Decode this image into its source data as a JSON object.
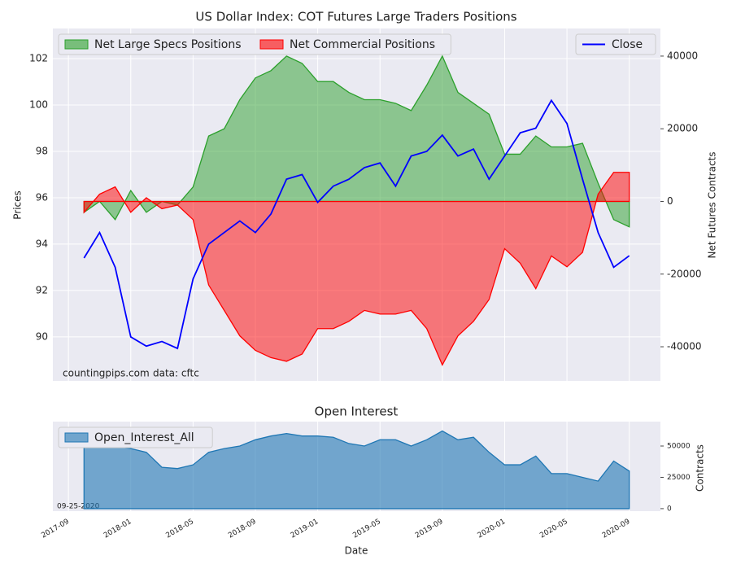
{
  "chart_data": [
    {
      "type": "combo",
      "title": "US Dollar Index: COT Futures Large Traders Positions",
      "ylabel": "Prices",
      "y2label": "Net Futures Contracts",
      "annotations": [
        "countingpips.com",
        "data: cftc"
      ],
      "x": [
        "2017-10",
        "2017-11",
        "2017-12",
        "2018-01",
        "2018-02",
        "2018-03",
        "2018-04",
        "2018-05",
        "2018-06",
        "2018-07",
        "2018-08",
        "2018-09",
        "2018-10",
        "2018-11",
        "2018-12",
        "2019-01",
        "2019-02",
        "2019-03",
        "2019-04",
        "2019-05",
        "2019-06",
        "2019-07",
        "2019-08",
        "2019-09",
        "2019-10",
        "2019-11",
        "2019-12",
        "2020-01",
        "2020-02",
        "2020-03",
        "2020-04",
        "2020-05",
        "2020-06",
        "2020-07",
        "2020-08",
        "2020-09"
      ],
      "xlim": [
        "2017-08",
        "2020-11"
      ],
      "ylim": [
        88.1,
        103.3
      ],
      "yticks": [
        90,
        92,
        94,
        96,
        98,
        100,
        102
      ],
      "y2lim": [
        -49400,
        47600
      ],
      "y2ticks": [
        -40000,
        -20000,
        0,
        20000,
        40000
      ],
      "grid": true,
      "legend": [
        "upper left",
        "upper right"
      ],
      "series": [
        {
          "name": "Net Large Specs Positions",
          "color": "#2ca02c",
          "axis": "y2",
          "kind": "area",
          "values": [
            -3000,
            0,
            -5000,
            3000,
            -3000,
            0,
            -1000,
            4000,
            18000,
            20000,
            28000,
            34000,
            36000,
            40000,
            38000,
            33000,
            33000,
            30000,
            28000,
            28000,
            27000,
            25000,
            32000,
            40000,
            30000,
            27000,
            24000,
            13000,
            13000,
            18000,
            15000,
            15000,
            16000,
            5000,
            -5000,
            -7000
          ]
        },
        {
          "name": "Net Commercial Positions",
          "color": "#ff0000",
          "axis": "y2",
          "kind": "area",
          "values": [
            -3000,
            2000,
            4000,
            -3000,
            1000,
            -2000,
            -1000,
            -5000,
            -23000,
            -30000,
            -37000,
            -41000,
            -43000,
            -44000,
            -42000,
            -35000,
            -35000,
            -33000,
            -30000,
            -31000,
            -31000,
            -30000,
            -35000,
            -45000,
            -37000,
            -33000,
            -27000,
            -13000,
            -17000,
            -24000,
            -15000,
            -18000,
            -14000,
            2000,
            8000,
            8000
          ]
        },
        {
          "name": "Close",
          "color": "#0000ff",
          "axis": "y",
          "kind": "line",
          "values": [
            93.4,
            94.5,
            93.0,
            90.0,
            89.6,
            89.8,
            89.5,
            92.5,
            94.0,
            94.5,
            95.0,
            94.5,
            95.3,
            96.8,
            97.0,
            95.8,
            96.5,
            96.8,
            97.3,
            97.5,
            96.5,
            97.8,
            98.0,
            98.7,
            97.8,
            98.1,
            96.8,
            97.8,
            98.8,
            99.0,
            100.2,
            99.2,
            96.8,
            94.5,
            93.0,
            93.5
          ]
        }
      ]
    },
    {
      "type": "area",
      "title": "Open Interest",
      "xlabel": "Date",
      "ylabel": "Contracts",
      "annotations": [
        "09-25-2020"
      ],
      "x": [
        "2017-10",
        "2017-11",
        "2017-12",
        "2018-01",
        "2018-02",
        "2018-03",
        "2018-04",
        "2018-05",
        "2018-06",
        "2018-07",
        "2018-08",
        "2018-09",
        "2018-10",
        "2018-11",
        "2018-12",
        "2019-01",
        "2019-02",
        "2019-03",
        "2019-04",
        "2019-05",
        "2019-06",
        "2019-07",
        "2019-08",
        "2019-09",
        "2019-10",
        "2019-11",
        "2019-12",
        "2020-01",
        "2020-02",
        "2020-03",
        "2020-04",
        "2020-05",
        "2020-06",
        "2020-07",
        "2020-08",
        "2020-09"
      ],
      "xlim": [
        "2017-08",
        "2020-11"
      ],
      "xticks": [
        "2017-09",
        "2018-01",
        "2018-05",
        "2018-09",
        "2019-01",
        "2019-05",
        "2019-09",
        "2020-01",
        "2020-05",
        "2020-09"
      ],
      "ylim": [
        -2000,
        69500
      ],
      "yticks": [
        0,
        25000,
        50000
      ],
      "grid": true,
      "legend": "upper left",
      "series": [
        {
          "name": "Open_Interest_All",
          "color": "#1f77b4",
          "values": [
            50000,
            50000,
            50000,
            48000,
            45000,
            33000,
            32000,
            35000,
            45000,
            48000,
            50000,
            55000,
            58000,
            60000,
            58000,
            58000,
            57000,
            52000,
            50000,
            55000,
            55000,
            50000,
            55000,
            62000,
            55000,
            57000,
            45000,
            35000,
            35000,
            42000,
            28000,
            28000,
            25000,
            22000,
            38000,
            30000
          ]
        }
      ]
    }
  ]
}
